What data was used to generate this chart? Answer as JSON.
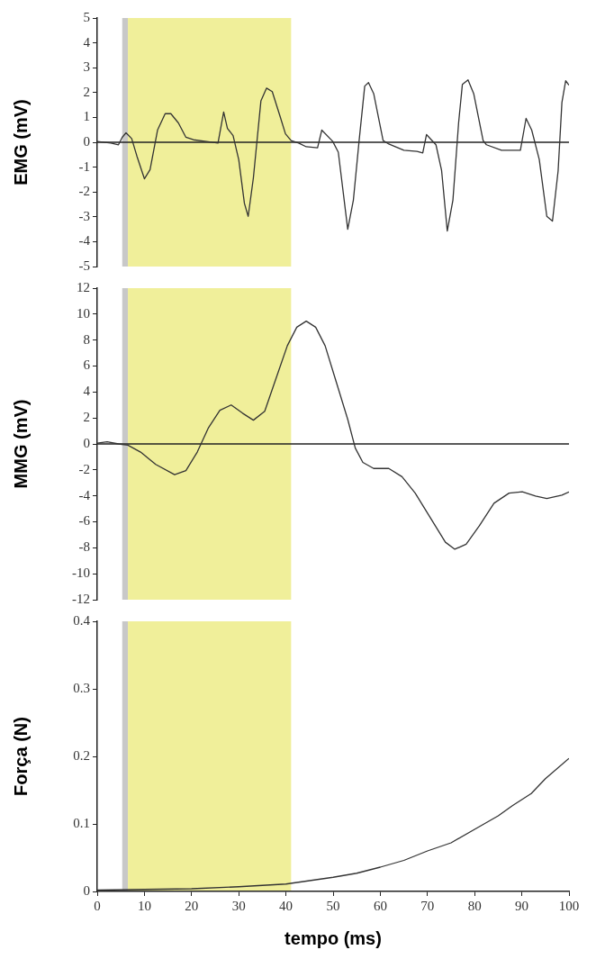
{
  "chart_data": [
    {
      "type": "line",
      "ylabel": "EMG (mV)",
      "xlim": [
        0,
        100
      ],
      "ylim": [
        -5,
        5
      ],
      "yticks": [
        -5,
        -4,
        -3,
        -2,
        -1,
        0,
        1,
        2,
        3,
        4,
        5
      ],
      "tick_labels": "y",
      "grid": false,
      "legend": false,
      "marker": "none",
      "ref_lines": [
        {
          "axis": "y",
          "value": 0,
          "color": "#222222"
        }
      ],
      "bands": [
        {
          "axis": "x",
          "from": 5.3,
          "to": 6.5,
          "color": "#c8c8c8"
        },
        {
          "axis": "x",
          "from": 6.5,
          "to": 41.1,
          "color": "#f0ef9a"
        }
      ],
      "series": [
        {
          "color": "#333333",
          "x": [
            0,
            2.9,
            4.5,
            5.3,
            6.1,
            7.3,
            8.4,
            10.0,
            11.2,
            12.8,
            14.4,
            15.6,
            17.2,
            18.8,
            20.4,
            22.8,
            25.6,
            26.8,
            27.6,
            28.8,
            30.0,
            31.2,
            32.0,
            33.1,
            34.7,
            35.9,
            37.1,
            38.7,
            39.9,
            41.1,
            42.7,
            44.3,
            46.7,
            47.6,
            49.9,
            51.1,
            53.1,
            54.3,
            55.5,
            56.7,
            57.5,
            58.6,
            60.6,
            61.8,
            65.0,
            67.8,
            69.0,
            69.8,
            71.8,
            73.0,
            74.2,
            75.4,
            76.6,
            77.4,
            78.6,
            79.8,
            81.8,
            82.5,
            85.7,
            89.7,
            90.9,
            92.1,
            93.7,
            95.3,
            96.5,
            97.7,
            98.5,
            99.3,
            100
          ],
          "values": [
            0.03,
            -0.03,
            -0.1,
            0.2,
            0.38,
            0.15,
            -0.55,
            -1.47,
            -1.1,
            0.5,
            1.15,
            1.15,
            0.78,
            0.2,
            0.1,
            0.04,
            -0.03,
            1.22,
            0.56,
            0.27,
            -0.7,
            -2.46,
            -2.98,
            -1.43,
            1.67,
            2.18,
            2.04,
            1.08,
            0.34,
            0.07,
            -0.03,
            -0.18,
            -0.22,
            0.49,
            0.04,
            -0.4,
            -3.5,
            -2.32,
            0.04,
            2.26,
            2.4,
            1.96,
            0.07,
            -0.07,
            -0.32,
            -0.37,
            -0.43,
            0.31,
            -0.1,
            -1.14,
            -3.57,
            -2.32,
            0.78,
            2.33,
            2.51,
            1.96,
            0.07,
            -0.1,
            -0.32,
            -0.32,
            0.96,
            0.49,
            -0.69,
            -2.98,
            -3.17,
            -1.14,
            1.6,
            2.48,
            2.3
          ]
        }
      ]
    },
    {
      "type": "line",
      "ylabel": "MMG (mV)",
      "xlim": [
        0,
        100
      ],
      "ylim": [
        -12,
        12
      ],
      "yticks": [
        -12,
        -10,
        -8,
        -6,
        -4,
        -2,
        0,
        2,
        4,
        6,
        8,
        10,
        12
      ],
      "tick_labels": "y",
      "grid": false,
      "legend": false,
      "marker": "none",
      "ref_lines": [
        {
          "axis": "y",
          "value": 0,
          "color": "#222222"
        }
      ],
      "bands": [
        {
          "axis": "x",
          "from": 5.3,
          "to": 6.5,
          "color": "#c8c8c8"
        },
        {
          "axis": "x",
          "from": 6.5,
          "to": 41.1,
          "color": "#f0ef9a"
        }
      ],
      "series": [
        {
          "color": "#333333",
          "x": [
            0,
            2.1,
            4.5,
            6.5,
            9.2,
            12.4,
            16.4,
            18.8,
            21.2,
            23.6,
            26.0,
            28.4,
            30.8,
            33.1,
            35.5,
            37.9,
            40.3,
            42.3,
            44.3,
            46.3,
            48.3,
            50.7,
            53.1,
            54.7,
            56.3,
            58.6,
            61.8,
            64.6,
            67.4,
            70.6,
            73.8,
            75.8,
            78.2,
            81.0,
            84.1,
            87.3,
            90.1,
            92.9,
            95.3,
            98.5,
            100
          ],
          "values": [
            0.06,
            0.16,
            0,
            -0.1,
            -0.63,
            -1.58,
            -2.37,
            -2.05,
            -0.63,
            1.26,
            2.59,
            3.0,
            2.37,
            1.83,
            2.52,
            5.05,
            7.57,
            8.99,
            9.46,
            8.99,
            7.57,
            4.73,
            1.89,
            -0.32,
            -1.42,
            -1.89,
            -1.89,
            -2.52,
            -3.79,
            -5.68,
            -7.57,
            -8.11,
            -7.73,
            -6.31,
            -4.57,
            -3.79,
            -3.69,
            -4.01,
            -4.2,
            -3.94,
            -3.7
          ]
        }
      ]
    },
    {
      "type": "line",
      "ylabel": "Força (N)",
      "xlabel": "tempo (ms)",
      "xlim": [
        0,
        100
      ],
      "xticks": [
        0,
        10,
        20,
        30,
        40,
        50,
        60,
        70,
        80,
        90,
        100
      ],
      "ylim": [
        0,
        0.4
      ],
      "yticks": [
        0,
        0.1,
        0.2,
        0.3,
        0.4
      ],
      "grid": false,
      "legend": false,
      "marker": "none",
      "bands": [
        {
          "axis": "x",
          "from": 5.3,
          "to": 6.5,
          "color": "#c8c8c8"
        },
        {
          "axis": "x",
          "from": 6.5,
          "to": 41.1,
          "color": "#f0ef9a"
        }
      ],
      "series": [
        {
          "color": "#333333",
          "x": [
            0,
            10,
            20,
            30,
            40,
            45,
            50,
            55,
            60,
            65,
            70,
            75,
            80,
            85,
            88,
            92,
            95,
            100
          ],
          "values": [
            0.002,
            0.003,
            0.004,
            0.007,
            0.011,
            0.016,
            0.021,
            0.027,
            0.036,
            0.046,
            0.06,
            0.072,
            0.092,
            0.112,
            0.127,
            0.145,
            0.167,
            0.197
          ]
        }
      ]
    }
  ]
}
